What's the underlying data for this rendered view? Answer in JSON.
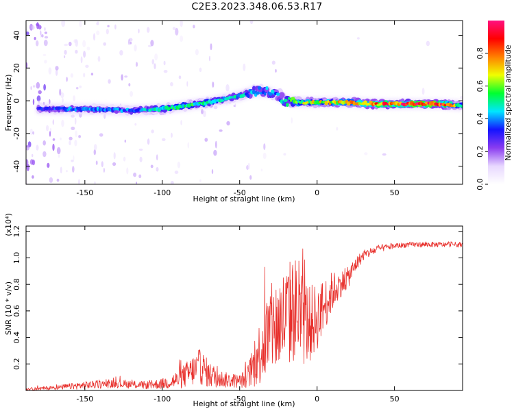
{
  "title": "C2E3.2023.348.06.53.R17",
  "colors": {
    "line": "#e8302c",
    "axis": "#000000",
    "colorbar_stops": [
      "#ffffff",
      "#e8d8ff",
      "#8a3cf0",
      "#1414ff",
      "#00e6ff",
      "#00ff30",
      "#f0ff00",
      "#ff8000",
      "#ff0000",
      "#ff1080"
    ]
  },
  "chart_data": [
    {
      "type": "heatmap",
      "xlabel": "Height of straight line (km)",
      "ylabel": "Frequency (Hz)",
      "xlim": [
        -188,
        94
      ],
      "ylim": [
        -51,
        49
      ],
      "xticks": [
        -150,
        -100,
        -50,
        0,
        50
      ],
      "xtick_labels": [
        "-150",
        "-100",
        "-50",
        "0",
        "50"
      ],
      "yticks": [
        -40,
        -20,
        0,
        20,
        40
      ],
      "ytick_labels": [
        "-40",
        "-20",
        "0",
        "20",
        "40"
      ],
      "colorbar": {
        "label": "Normalized spectral amplitude",
        "range": [
          0,
          1
        ],
        "ticks": [
          0.0,
          0.2,
          0.4,
          0.6,
          0.8
        ],
        "tick_labels": [
          "0.0",
          "0.2",
          "0.4",
          "0.6",
          "0.8"
        ]
      },
      "ridge": {
        "x": [
          -180,
          -160,
          -140,
          -120,
          -100,
          -85,
          -70,
          -60,
          -50,
          -40,
          -30,
          -25,
          -20,
          -10,
          0,
          20,
          40,
          60,
          80,
          94
        ],
        "freq": [
          -5,
          -5,
          -5,
          -6,
          -5,
          -3,
          -1,
          1,
          3,
          6,
          5,
          3,
          0,
          -1,
          -1,
          -1,
          -2,
          -2,
          -2,
          -3
        ],
        "amplitude": [
          0.35,
          0.4,
          0.4,
          0.4,
          0.5,
          0.55,
          0.55,
          0.5,
          0.45,
          0.45,
          0.45,
          0.4,
          0.5,
          0.65,
          0.7,
          0.75,
          0.85,
          0.95,
          0.95,
          0.5
        ]
      },
      "grid": false,
      "grid_note": "no grid"
    },
    {
      "type": "line",
      "xlabel": "Height of straight line (km)",
      "ylabel": "SNR (10 * v/v)",
      "y_multiplier_label": "(x10⁴)",
      "xlim": [
        -188,
        94
      ],
      "ylim": [
        0,
        1.24
      ],
      "xticks": [
        -150,
        -100,
        -50,
        0,
        50
      ],
      "xtick_labels": [
        "-150",
        "-100",
        "-50",
        "0",
        "50"
      ],
      "yticks": [
        0.2,
        0.4,
        0.6,
        0.8,
        1.0,
        1.2
      ],
      "ytick_labels": [
        "0.2",
        "0.4",
        "0.6",
        "0.8",
        "1.0",
        "1.2"
      ],
      "series": [
        {
          "x": [
            -188,
            -170,
            -150,
            -130,
            -110,
            -100,
            -90,
            -80,
            -75,
            -70,
            -60,
            -50,
            -45,
            -40,
            -35,
            -30,
            -25,
            -20,
            -15,
            -10,
            -5,
            0,
            5,
            10,
            15,
            20,
            25,
            30,
            40,
            50,
            60,
            70,
            80,
            90,
            94
          ],
          "values": [
            0.01,
            0.02,
            0.04,
            0.05,
            0.04,
            0.05,
            0.08,
            0.15,
            0.18,
            0.12,
            0.08,
            0.07,
            0.1,
            0.2,
            0.35,
            0.45,
            0.5,
            0.55,
            0.62,
            0.55,
            0.5,
            0.55,
            0.65,
            0.75,
            0.8,
            0.85,
            0.95,
            1.02,
            1.07,
            1.09,
            1.1,
            1.1,
            1.1,
            1.1,
            1.1
          ],
          "noise": [
            0.01,
            0.015,
            0.03,
            0.03,
            0.03,
            0.04,
            0.07,
            0.12,
            0.14,
            0.1,
            0.06,
            0.05,
            0.08,
            0.18,
            0.3,
            0.35,
            0.38,
            0.4,
            0.42,
            0.38,
            0.3,
            0.25,
            0.2,
            0.15,
            0.1,
            0.08,
            0.06,
            0.04,
            0.03,
            0.02,
            0.02,
            0.02,
            0.02,
            0.02,
            0.02
          ]
        }
      ],
      "grid": false
    }
  ]
}
